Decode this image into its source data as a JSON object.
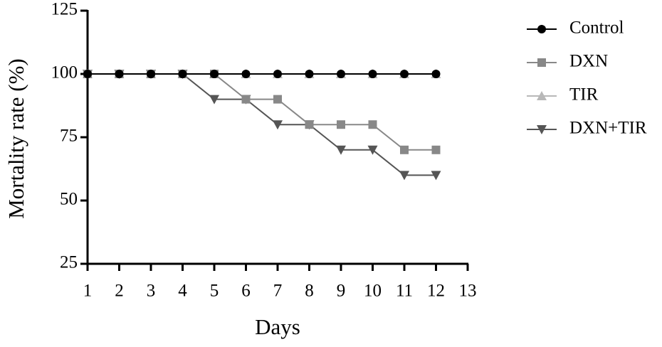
{
  "chart_data": {
    "type": "line",
    "x_label": "Days",
    "y_label": "Mortality rate (%)",
    "x": [
      1,
      2,
      3,
      4,
      5,
      6,
      7,
      8,
      9,
      10,
      11,
      12
    ],
    "series": [
      {
        "name": "Control",
        "color": "#000000",
        "marker": "circle",
        "values": [
          100,
          100,
          100,
          100,
          100,
          100,
          100,
          100,
          100,
          100,
          100,
          100
        ]
      },
      {
        "name": "DXN",
        "color": "#888888",
        "marker": "square",
        "values": [
          100,
          100,
          100,
          100,
          100,
          90,
          90,
          80,
          80,
          80,
          70,
          70
        ]
      },
      {
        "name": "TIR",
        "color": "#b8b8b8",
        "marker": "triangle-up",
        "values": [
          100,
          100,
          100,
          100,
          100,
          100,
          100,
          100,
          100,
          100,
          100,
          100
        ]
      },
      {
        "name": "DXN+TIR",
        "color": "#555555",
        "marker": "triangle-down",
        "values": [
          100,
          100,
          100,
          100,
          90,
          90,
          80,
          80,
          70,
          70,
          60,
          60
        ]
      }
    ],
    "xlim": [
      1,
      13
    ],
    "xticks": [
      1,
      2,
      3,
      4,
      5,
      6,
      7,
      8,
      9,
      10,
      11,
      12,
      13
    ],
    "ylim": [
      25,
      125
    ],
    "yticks": [
      25,
      50,
      75,
      100,
      125
    ]
  }
}
